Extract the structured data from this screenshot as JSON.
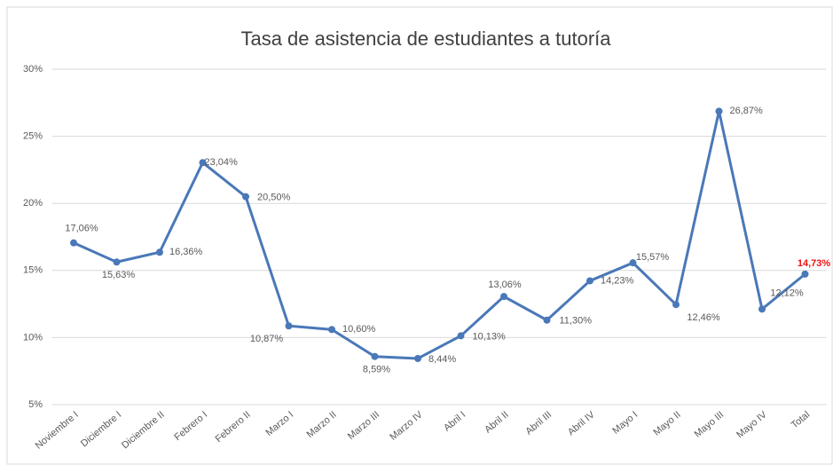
{
  "chart_data": {
    "type": "line",
    "title": "Tasa de asistencia de estudiantes a tutoría",
    "categories": [
      "Noviembre I",
      "Diciembre I",
      "Diciembre II",
      "Febrero I",
      "Febrero II",
      "Marzo I",
      "Marzo II",
      "Marzo III",
      "Marzo IV",
      "Abril I",
      "Abril II",
      "Abril III",
      "Abril IV",
      "Mayo I",
      "Mayo II",
      "Mayo III",
      "Mayo IV",
      "Total"
    ],
    "series": [
      {
        "name": "Tasa de asistencia",
        "color": "#4a78b8",
        "values": [
          17.06,
          15.63,
          16.36,
          23.04,
          20.5,
          10.87,
          10.6,
          8.59,
          8.44,
          10.13,
          13.06,
          11.3,
          14.23,
          15.57,
          12.46,
          26.87,
          12.12,
          14.73
        ],
        "value_labels": [
          "17,06%",
          "15,63%",
          "16,36%",
          "23,04%",
          "20,50%",
          "10,87%",
          "10,60%",
          "8,59%",
          "8,44%",
          "10,13%",
          "13,06%",
          "11,30%",
          "14,23%",
          "15,57%",
          "12,46%",
          "26,87%",
          "12,12%",
          "14,73%"
        ],
        "value_label_color": "#595959",
        "highlight_label_color": "#ee1111"
      }
    ],
    "ylim": [
      5,
      30
    ],
    "yticks": [
      {
        "value": 5,
        "label": "5%"
      },
      {
        "value": 10,
        "label": "10%"
      },
      {
        "value": 15,
        "label": "15%"
      },
      {
        "value": 20,
        "label": "20%"
      },
      {
        "value": 25,
        "label": "25%"
      },
      {
        "value": 30,
        "label": "30%"
      }
    ],
    "grid": true
  }
}
